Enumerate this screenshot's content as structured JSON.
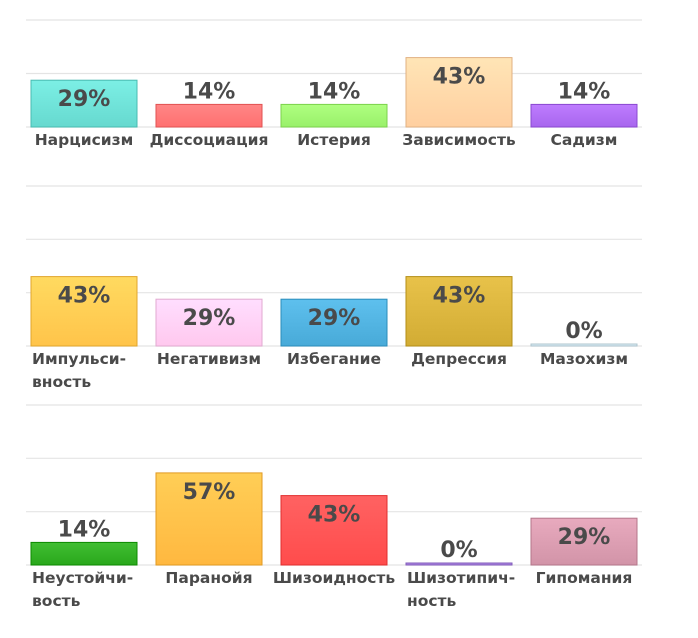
{
  "chart_data": {
    "type": "bar",
    "ylim": [
      0,
      60
    ],
    "grid": true,
    "value_suffix": "%",
    "rows": [
      {
        "categories": [
          "Нарцисизм",
          "Диссоциация",
          "Истерия",
          "Зависимость",
          "Садизм"
        ],
        "category_lines": [
          [
            "Нарцисизм"
          ],
          [
            "Диссоциация"
          ],
          [
            "Истерия"
          ],
          [
            "Зависимость"
          ],
          [
            "Садизм"
          ]
        ],
        "values": [
          29,
          14,
          14,
          43,
          14
        ],
        "colors": [
          "#66d9cf",
          "#ff7070",
          "#99f06a",
          "#ffcfa0",
          "#a866ee"
        ]
      },
      {
        "categories": [
          "Импульсивность",
          "Негативизм",
          "Избегание",
          "Депрессия",
          "Мазохизм"
        ],
        "category_lines": [
          [
            "Импульси-",
            "вность"
          ],
          [
            "Негативизм"
          ],
          [
            "Избегание"
          ],
          [
            "Депрессия"
          ],
          [
            "Мазохизм"
          ]
        ],
        "values": [
          43,
          29,
          29,
          43,
          0
        ],
        "colors": [
          "#ffc44a",
          "#ffc8ee",
          "#48aad8",
          "#d2ac34",
          "#cde2ec"
        ]
      },
      {
        "categories": [
          "Неустойчивость",
          "Паранойя",
          "Шизоидность",
          "Шизотипичность",
          "Гипомания"
        ],
        "category_lines": [
          [
            "Неустойчи-",
            "вость"
          ],
          [
            "Паранойя"
          ],
          [
            "Шизоидность"
          ],
          [
            "Шизотипич-",
            "ность"
          ],
          [
            "Гипомания"
          ]
        ],
        "values": [
          14,
          57,
          43,
          0,
          29
        ],
        "colors": [
          "#2aa81c",
          "#ffb840",
          "#ff4c4c",
          "#a07ad8",
          "#d294a8"
        ]
      }
    ]
  }
}
